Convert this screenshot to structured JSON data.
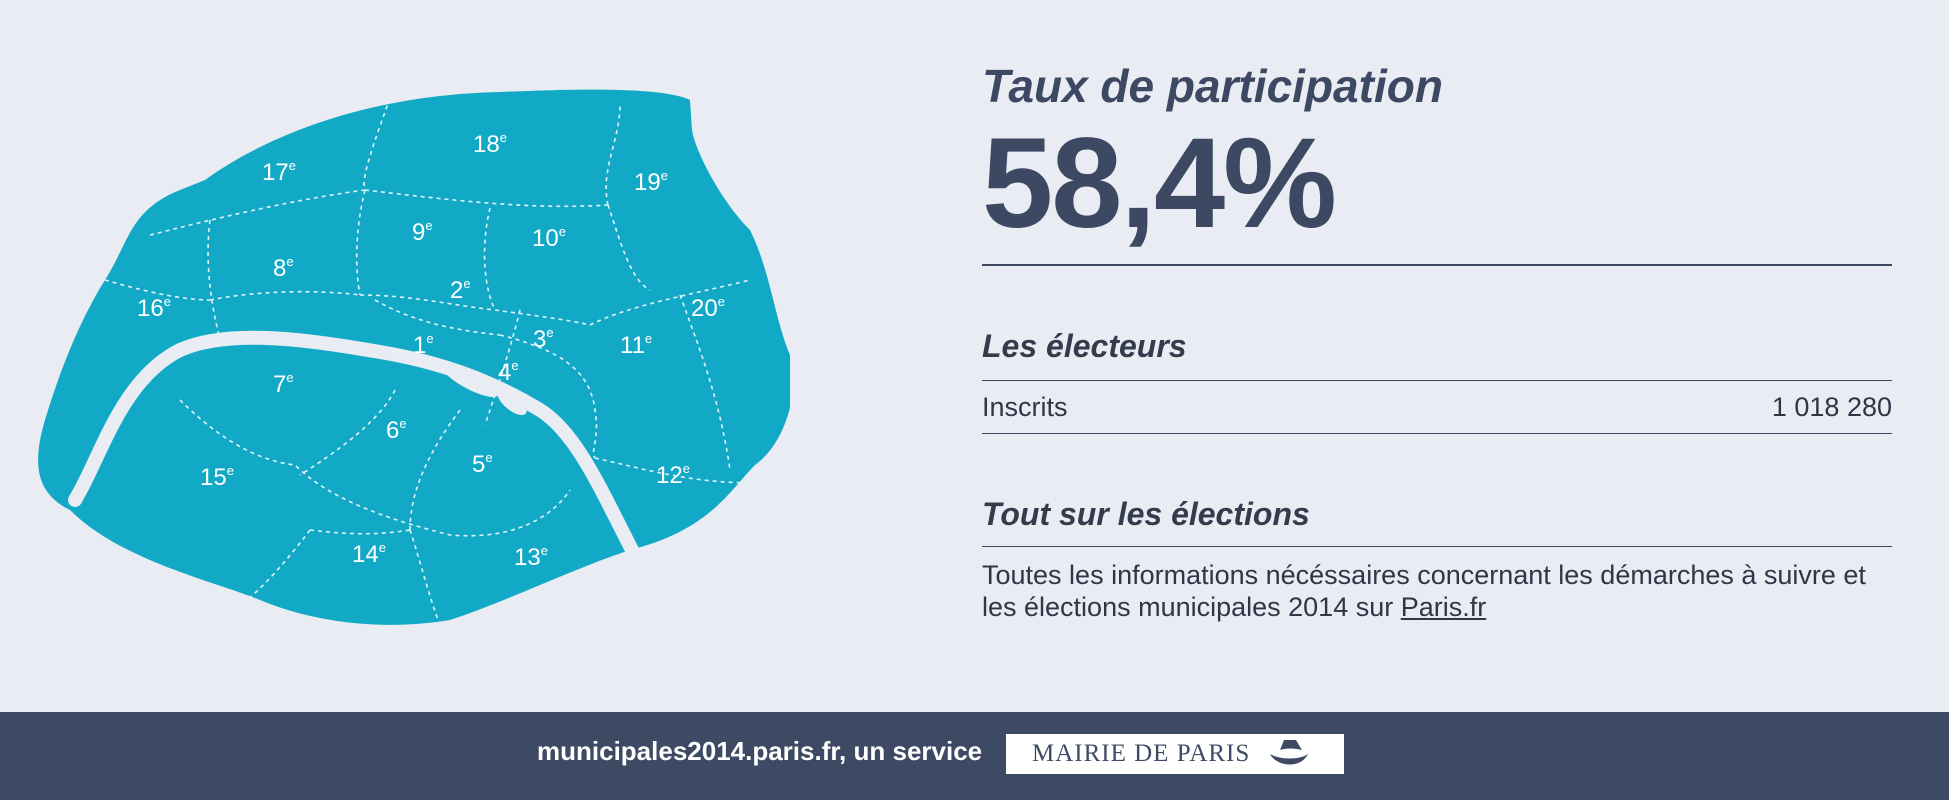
{
  "map": {
    "arrondissements": [
      {
        "num": "1",
        "sup": "e"
      },
      {
        "num": "2",
        "sup": "e"
      },
      {
        "num": "3",
        "sup": "e"
      },
      {
        "num": "4",
        "sup": "e"
      },
      {
        "num": "5",
        "sup": "e"
      },
      {
        "num": "6",
        "sup": "e"
      },
      {
        "num": "7",
        "sup": "e"
      },
      {
        "num": "8",
        "sup": "e"
      },
      {
        "num": "9",
        "sup": "e"
      },
      {
        "num": "10",
        "sup": "e"
      },
      {
        "num": "11",
        "sup": "e"
      },
      {
        "num": "12",
        "sup": "e"
      },
      {
        "num": "13",
        "sup": "e"
      },
      {
        "num": "14",
        "sup": "e"
      },
      {
        "num": "15",
        "sup": "e"
      },
      {
        "num": "16",
        "sup": "e"
      },
      {
        "num": "17",
        "sup": "e"
      },
      {
        "num": "18",
        "sup": "e"
      },
      {
        "num": "19",
        "sup": "e"
      },
      {
        "num": "20",
        "sup": "e"
      }
    ],
    "fill_color": "#12a9c7"
  },
  "participation": {
    "title": "Taux de participation",
    "value": "58,4%"
  },
  "electeurs": {
    "title": "Les électeurs",
    "rows": [
      {
        "label": "Inscrits",
        "value": "1 018 280"
      }
    ]
  },
  "elections": {
    "title": "Tout sur les élections",
    "text": "Toutes les informations nécéssaires concernant les démarches à suivre et les élections municipales 2014 sur ",
    "link_label": "Paris.fr"
  },
  "footer": {
    "text": "municipales2014.paris.fr, un service",
    "logo_text": "MAIRIE DE PARIS"
  },
  "colors": {
    "accent": "#12a9c7",
    "dark": "#3e4a63",
    "background": "#e9ecf3"
  }
}
